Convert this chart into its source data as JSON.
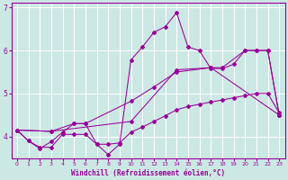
{
  "xlabel": "Windchill (Refroidissement éolien,°C)",
  "bg_color": "#cce8e4",
  "grid_color": "#ffffff",
  "line_color": "#990099",
  "xlim": [
    -0.5,
    23.5
  ],
  "ylim": [
    3.5,
    7.1
  ],
  "yticks": [
    4,
    5,
    6,
    7
  ],
  "xticks": [
    0,
    1,
    2,
    3,
    4,
    5,
    6,
    7,
    8,
    9,
    10,
    11,
    12,
    13,
    14,
    15,
    16,
    17,
    18,
    19,
    20,
    21,
    22,
    23
  ],
  "line1_x": [
    0,
    1,
    2,
    3,
    4,
    5,
    6,
    7,
    8,
    9,
    10,
    11,
    12,
    13,
    14,
    15,
    16,
    17,
    18,
    19,
    20,
    21,
    22,
    23
  ],
  "line1_y": [
    4.15,
    3.9,
    3.75,
    3.75,
    4.05,
    4.05,
    4.05,
    3.82,
    3.82,
    3.85,
    4.1,
    4.22,
    4.35,
    4.48,
    4.62,
    4.7,
    4.75,
    4.8,
    4.85,
    4.9,
    4.95,
    5.0,
    5.0,
    4.55
  ],
  "line2_x": [
    0,
    1,
    2,
    3,
    4,
    5,
    6,
    7,
    8,
    9,
    10,
    11,
    12,
    13,
    14,
    15,
    16,
    17,
    18,
    19,
    20,
    21,
    22,
    23
  ],
  "line2_y": [
    4.15,
    3.9,
    3.72,
    3.88,
    4.1,
    4.3,
    4.3,
    3.82,
    3.58,
    3.82,
    5.78,
    6.08,
    6.42,
    6.55,
    6.88,
    6.08,
    6.0,
    5.58,
    5.58,
    5.68,
    6.0,
    6.0,
    6.0,
    4.5
  ],
  "line3_x": [
    0,
    3,
    5,
    6,
    10,
    12,
    14,
    17,
    18,
    20,
    21,
    22,
    23
  ],
  "line3_y": [
    4.15,
    4.12,
    4.3,
    4.3,
    4.82,
    5.15,
    5.5,
    5.6,
    5.6,
    6.0,
    6.0,
    6.0,
    4.5
  ],
  "line4_x": [
    0,
    3,
    10,
    14,
    17,
    23
  ],
  "line4_y": [
    4.15,
    4.12,
    4.35,
    5.55,
    5.6,
    4.5
  ]
}
